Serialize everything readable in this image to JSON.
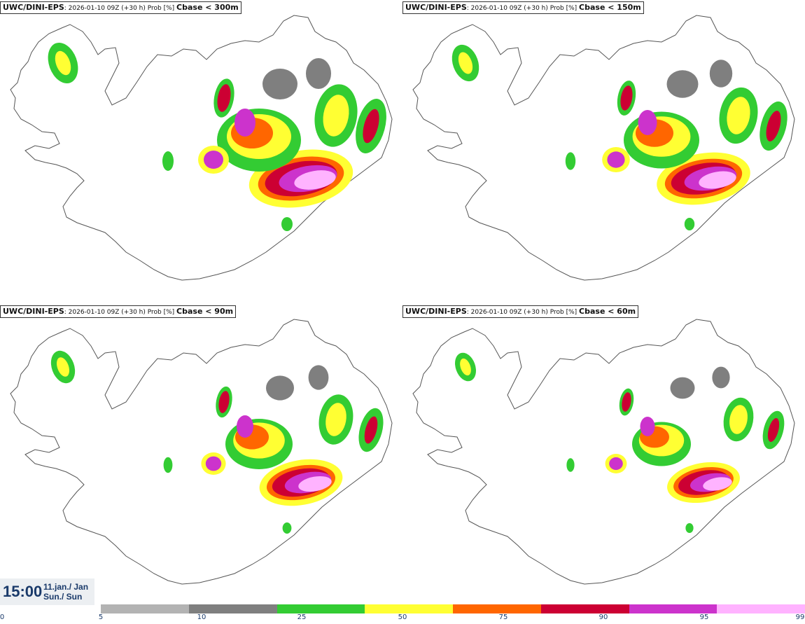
{
  "panels": [
    {
      "model": "UWC/DINI-EPS",
      "run": ": 2026-01-10 09Z (+30 h) Prob [%]",
      "variable": "Cbase < 300m"
    },
    {
      "model": "UWC/DINI-EPS",
      "run": ": 2026-01-10 09Z (+30 h) Prob [%]",
      "variable": "Cbase < 150m"
    },
    {
      "model": "UWC/DINI-EPS",
      "run": ": 2026-01-10 09Z (+30 h) Prob [%]",
      "variable": "Cbase < 90m"
    },
    {
      "model": "UWC/DINI-EPS",
      "run": ": 2026-01-10 09Z (+30 h) Prob [%]",
      "variable": "Cbase < 60m"
    }
  ],
  "valid_time": {
    "clock": "15:00",
    "date_line1": "11.jan./ Jan",
    "date_line2": "Sun./ Sun"
  },
  "legend": {
    "ticks": [
      "0",
      "5",
      "10",
      "25",
      "50",
      "75",
      "90",
      "95",
      "99"
    ],
    "colors": [
      "#b3b3b3",
      "#7f7f7f",
      "#33cc33",
      "#ffff33",
      "#ff6600",
      "#cc0033",
      "#cc33cc",
      "#ffb3ff"
    ]
  }
}
